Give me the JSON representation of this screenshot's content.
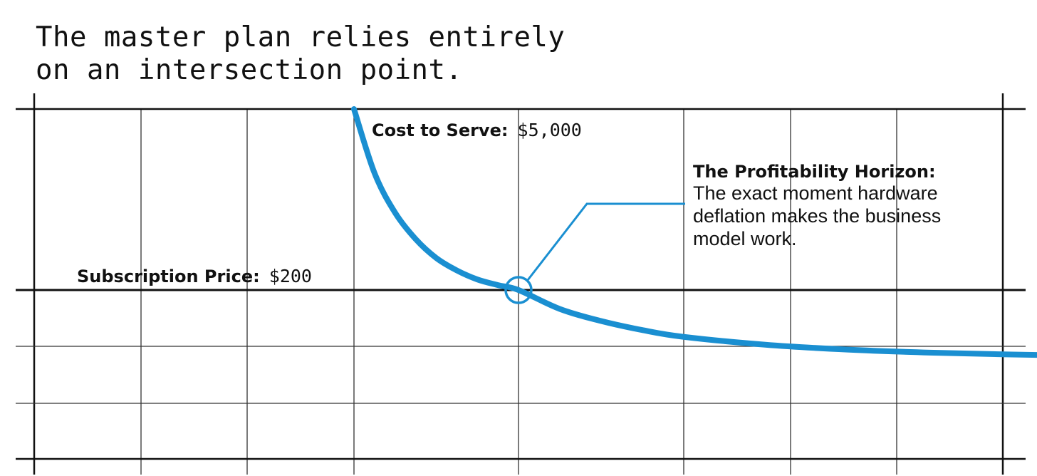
{
  "headline": "The master plan relies entirely\non an intersection point.",
  "chart_data": {
    "type": "line",
    "title": "",
    "xlabel": "",
    "ylabel": "",
    "grid": true,
    "series": [
      {
        "color": "#1a8fd1",
        "points": [
          [
            0.0,
            5000
          ],
          [
            0.5,
            3300
          ],
          [
            1.0,
            2250
          ],
          [
            1.5,
            1550
          ],
          [
            2.0,
            1050
          ],
          [
            2.5,
            720
          ],
          [
            3.0,
            480
          ],
          [
            3.5,
            330
          ],
          [
            4.0,
            200
          ],
          [
            5.0,
            -300
          ],
          [
            6.0,
            -620
          ],
          [
            7.0,
            -860
          ],
          [
            8.0,
            -1040
          ],
          [
            10.0,
            -1250
          ],
          [
            12.0,
            -1380
          ],
          [
            14.0,
            -1460
          ],
          [
            16.0,
            -1510
          ],
          [
            18.0,
            -1550
          ],
          [
            20.0,
            -1575
          ]
        ]
      }
    ],
    "reference_lines": [
      {
        "label_bold": "Subscription Price:",
        "label_value": "$200",
        "value": 200,
        "color": "#111111"
      }
    ],
    "annotations": {
      "start": {
        "label_bold": "Cost to Serve:",
        "label_value": "$5,000",
        "value": 5000
      },
      "intersection": {
        "x": 4.0,
        "y": 200,
        "title": "The Profitability Horizon:",
        "lines": [
          "The exact moment hardware",
          "deflation makes the business",
          "model work."
        ],
        "color": "#1a8fd1"
      }
    }
  }
}
